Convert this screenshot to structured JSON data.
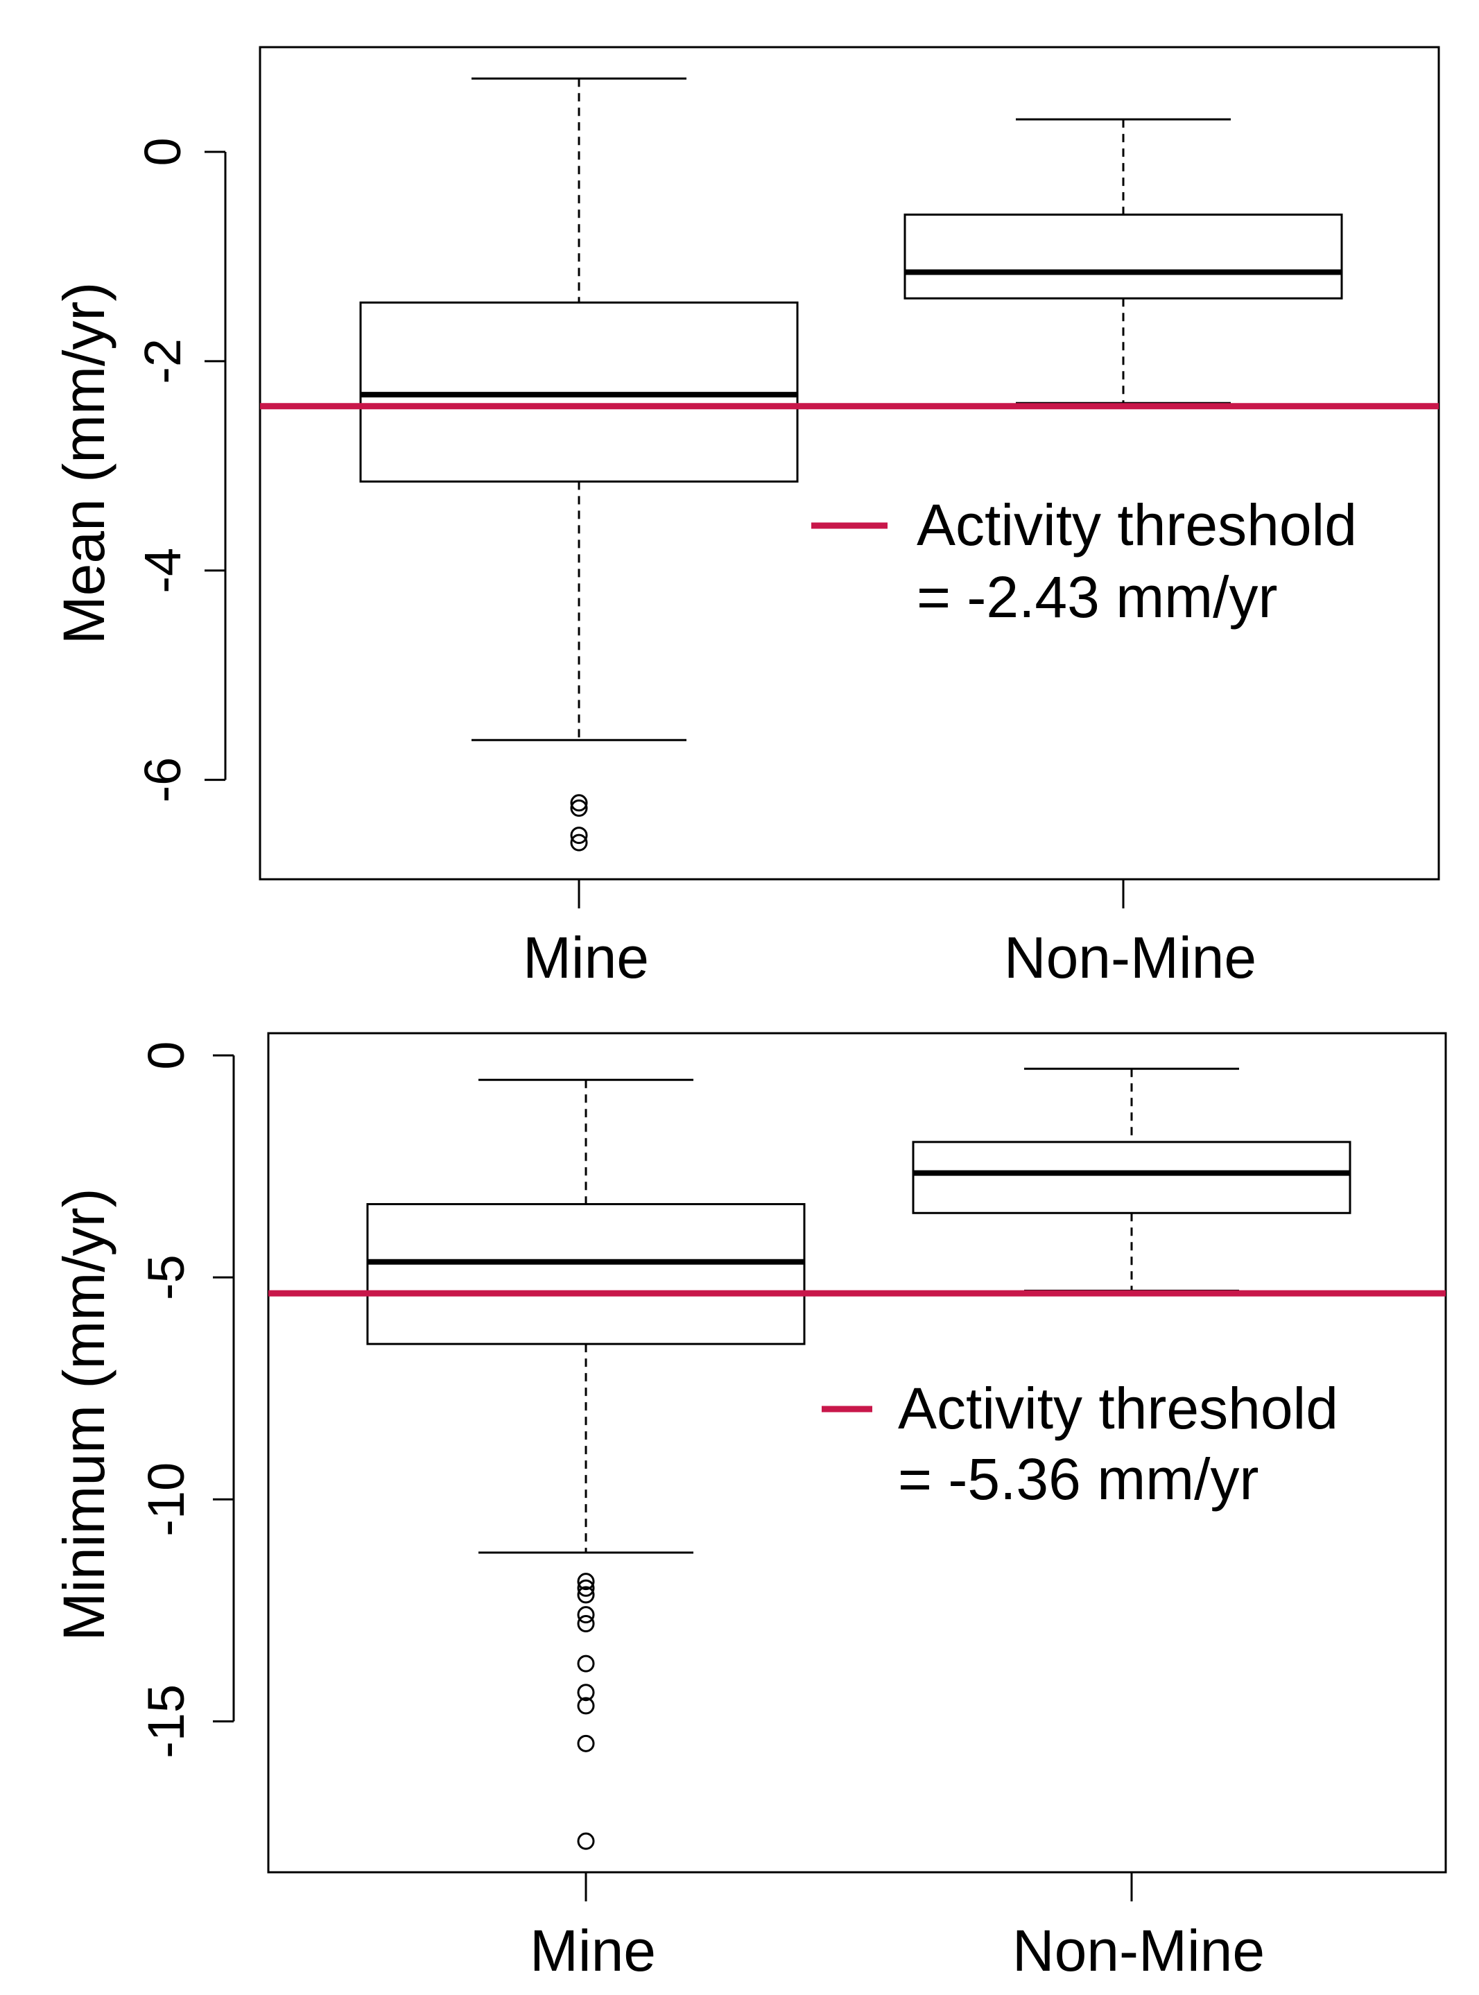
{
  "colors": {
    "threshold_line": "#C8174A",
    "box_stroke": "#000000",
    "background": "#FFFFFF"
  },
  "chart_data": [
    {
      "type": "box",
      "ylabel": "Mean (mm/yr)",
      "xlabel": "",
      "categories": [
        "Mine",
        "Non-Mine"
      ],
      "yticks": [
        0,
        -2,
        -4,
        -6
      ],
      "ytick_labels": [
        "0",
        "-2",
        "-4",
        "-6"
      ],
      "ylim": [
        -6.95,
        1.0
      ],
      "grid": false,
      "boxes": [
        {
          "name": "Mine",
          "whisker_low": -5.62,
          "q1": -3.15,
          "median": -2.32,
          "q3": -1.44,
          "whisker_high": 0.7,
          "outliers": [
            -6.22,
            -6.27,
            -6.53,
            -6.6
          ]
        },
        {
          "name": "Non-Mine",
          "whisker_low": -2.4,
          "q1": -1.4,
          "median": -1.15,
          "q3": -0.6,
          "whisker_high": 0.31,
          "outliers": []
        }
      ],
      "threshold": {
        "value": -2.43,
        "label_line1": "Activity threshold",
        "label_line2": "= -2.43 mm/yr",
        "legend_position": "right"
      }
    },
    {
      "type": "box",
      "ylabel": "Minimum (mm/yr)",
      "xlabel": "",
      "categories": [
        "Mine",
        "Non-Mine"
      ],
      "yticks": [
        0,
        -5,
        -10,
        -15
      ],
      "ytick_labels": [
        "0",
        "-5",
        "-10",
        "-15"
      ],
      "ylim": [
        -18.4,
        0.5
      ],
      "grid": false,
      "boxes": [
        {
          "name": "Mine",
          "whisker_low": -11.2,
          "q1": -6.5,
          "median": -4.65,
          "q3": -3.35,
          "whisker_high": -0.55,
          "outliers": [
            -11.85,
            -12.0,
            -12.15,
            -12.6,
            -12.8,
            -13.7,
            -14.35,
            -14.65,
            -15.5,
            -17.7
          ]
        },
        {
          "name": "Non-Mine",
          "whisker_low": -5.3,
          "q1": -3.55,
          "median": -2.65,
          "q3": -1.95,
          "whisker_high": -0.3,
          "outliers": []
        }
      ],
      "threshold": {
        "value": -5.36,
        "label_line1": "Activity threshold",
        "label_line2": "= -5.36 mm/yr",
        "legend_position": "right"
      }
    }
  ]
}
